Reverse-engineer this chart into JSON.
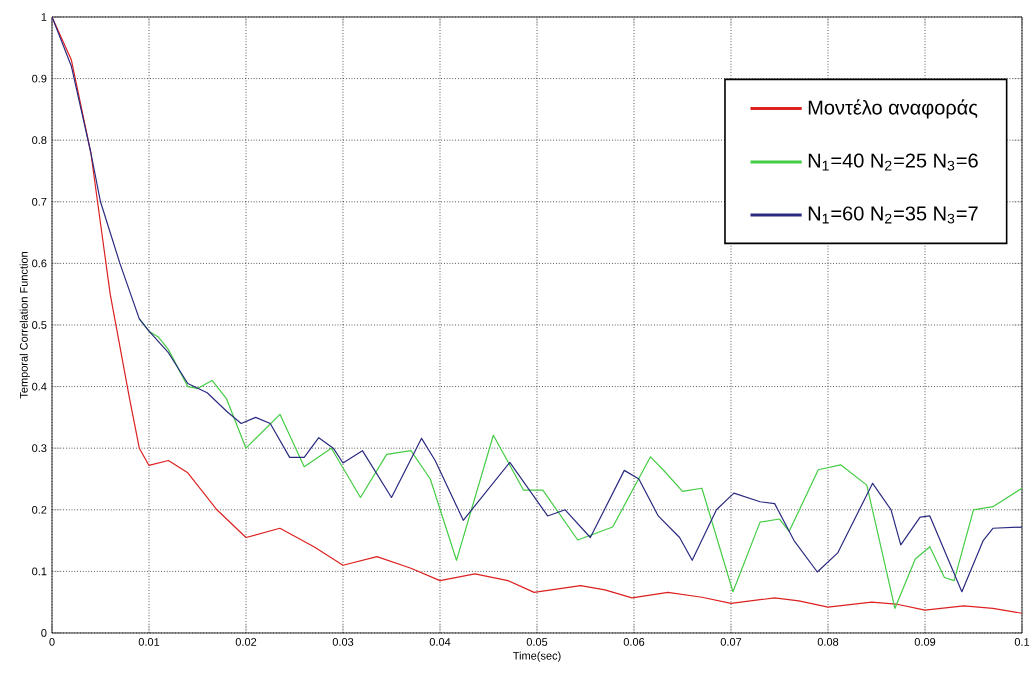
{
  "chart_data": {
    "type": "line",
    "xlabel": "Time(sec)",
    "ylabel": "Temporal Correlation Function",
    "xlim": [
      0,
      0.1
    ],
    "ylim": [
      0,
      1
    ],
    "xticks": [
      0,
      0.01,
      0.02,
      0.03,
      0.04,
      0.05,
      0.06,
      0.07,
      0.08,
      0.09,
      0.1
    ],
    "yticks": [
      0,
      0.1,
      0.2,
      0.3,
      0.4,
      0.5,
      0.6,
      0.7,
      0.8,
      0.9,
      1
    ],
    "grid": true,
    "legend": "top right",
    "marker": "none",
    "line_style": "solid",
    "series": [
      {
        "name": "Μοντέλο αναφοράς",
        "color": "#dd2020",
        "x": [
          0,
          0.002,
          0.004,
          0.006,
          0.008,
          0.009,
          0.01,
          0.012,
          0.014,
          0.017,
          0.02,
          0.0235,
          0.027,
          0.03,
          0.0335,
          0.037,
          0.04,
          0.0436,
          0.047,
          0.0497,
          0.0545,
          0.057,
          0.0598,
          0.0635,
          0.067,
          0.07,
          0.0745,
          0.077,
          0.08,
          0.0845,
          0.087,
          0.09,
          0.094,
          0.097,
          0.1
        ],
        "values": [
          1,
          0.93,
          0.78,
          0.55,
          0.38,
          0.3,
          0.272,
          0.28,
          0.26,
          0.2,
          0.155,
          0.17,
          0.14,
          0.11,
          0.124,
          0.105,
          0.085,
          0.096,
          0.085,
          0.066,
          0.077,
          0.07,
          0.057,
          0.066,
          0.058,
          0.048,
          0.057,
          0.052,
          0.042,
          0.05,
          0.047,
          0.037,
          0.044,
          0.04,
          0.032
        ]
      },
      {
        "name": "N$_{1}$=40 N$_{2}$=25 N$_{3}$=6",
        "color": "#44cc44",
        "x": [
          0.009,
          0.01,
          0.011,
          0.012,
          0.013,
          0.014,
          0.015,
          0.0165,
          0.018,
          0.02,
          0.0235,
          0.026,
          0.0288,
          0.0318,
          0.0345,
          0.037,
          0.039,
          0.0417,
          0.0455,
          0.0486,
          0.0506,
          0.0542,
          0.0578,
          0.0617,
          0.063,
          0.065,
          0.067,
          0.0702,
          0.073,
          0.075,
          0.076,
          0.079,
          0.0813,
          0.084,
          0.0869,
          0.089,
          0.0905,
          0.092,
          0.093,
          0.095,
          0.097,
          0.1
        ],
        "values": [
          0.51,
          0.49,
          0.48,
          0.46,
          0.43,
          0.4,
          0.397,
          0.41,
          0.38,
          0.3,
          0.355,
          0.27,
          0.3,
          0.22,
          0.29,
          0.296,
          0.25,
          0.118,
          0.321,
          0.232,
          0.232,
          0.151,
          0.172,
          0.286,
          0.265,
          0.23,
          0.235,
          0.067,
          0.18,
          0.185,
          0.165,
          0.265,
          0.273,
          0.24,
          0.04,
          0.12,
          0.14,
          0.09,
          0.085,
          0.2,
          0.205,
          0.235
        ]
      },
      {
        "name": "N$_{1}$=60 N$_{2}$=35 N$_{3}$=7",
        "color": "#2a2a80",
        "x": [
          0,
          0.002,
          0.004,
          0.005,
          0.007,
          0.009,
          0.01,
          0.012,
          0.014,
          0.016,
          0.018,
          0.0195,
          0.021,
          0.0225,
          0.0245,
          0.026,
          0.0275,
          0.029,
          0.03,
          0.032,
          0.035,
          0.0381,
          0.0395,
          0.0424,
          0.0472,
          0.0511,
          0.0529,
          0.0555,
          0.059,
          0.0605,
          0.0625,
          0.0647,
          0.066,
          0.0685,
          0.0703,
          0.073,
          0.0745,
          0.0765,
          0.0789,
          0.081,
          0.0846,
          0.0865,
          0.0875,
          0.0895,
          0.0905,
          0.0938,
          0.096,
          0.097,
          0.1
        ],
        "values": [
          1,
          0.92,
          0.78,
          0.7,
          0.6,
          0.51,
          0.49,
          0.455,
          0.405,
          0.39,
          0.36,
          0.34,
          0.35,
          0.34,
          0.285,
          0.285,
          0.317,
          0.3,
          0.276,
          0.296,
          0.22,
          0.316,
          0.28,
          0.183,
          0.277,
          0.19,
          0.2,
          0.155,
          0.264,
          0.25,
          0.19,
          0.155,
          0.118,
          0.2,
          0.227,
          0.213,
          0.21,
          0.15,
          0.099,
          0.13,
          0.243,
          0.2,
          0.143,
          0.188,
          0.19,
          0.067,
          0.15,
          0.17,
          0.172
        ]
      }
    ]
  }
}
